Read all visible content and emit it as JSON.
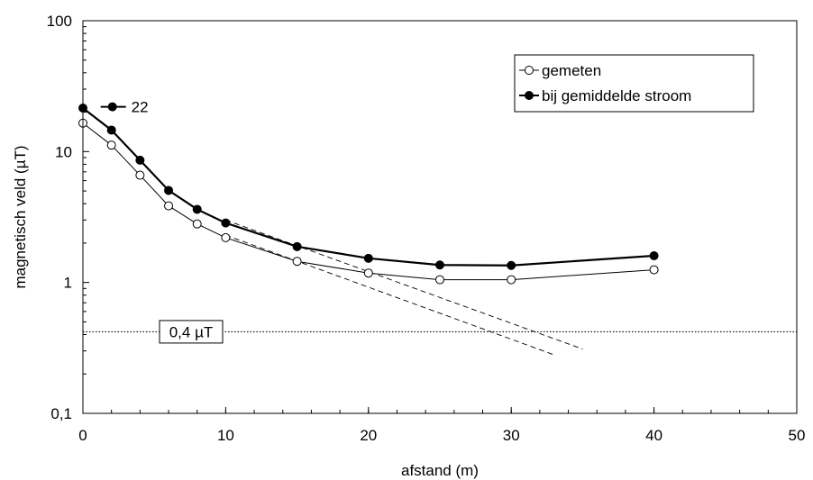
{
  "chart_data": {
    "type": "line",
    "title": "",
    "xlabel": "afstand (m)",
    "ylabel": "magnetisch veld (µT)",
    "xlim": [
      0,
      50
    ],
    "ylim": [
      0.1,
      100
    ],
    "yscale": "log",
    "xticks": [
      "0",
      "10",
      "20",
      "30",
      "40",
      "50"
    ],
    "yticks": [
      "0,1",
      "1",
      "10",
      "100"
    ],
    "grid": false,
    "legend_position": "top-right",
    "series": [
      {
        "name": "gemeten",
        "marker": "open-circle",
        "line": "thin",
        "x": [
          0,
          2,
          4,
          6,
          8,
          10,
          15,
          20,
          25,
          30,
          40
        ],
        "y": [
          16.5,
          11.2,
          6.6,
          3.85,
          2.8,
          2.2,
          1.45,
          1.18,
          1.05,
          1.05,
          1.25
        ]
      },
      {
        "name": "bij gemiddelde stroom",
        "marker": "filled-circle",
        "line": "thick",
        "x": [
          0,
          2,
          4,
          6,
          8,
          10,
          15,
          20,
          25,
          30,
          40
        ],
        "y": [
          21.5,
          14.6,
          8.6,
          5.05,
          3.62,
          2.85,
          1.88,
          1.53,
          1.36,
          1.35,
          1.6
        ]
      }
    ],
    "reference_lines": [
      {
        "label": "0,4 µT",
        "y": 0.42,
        "style": "dotted"
      }
    ],
    "trend_lines": [
      {
        "x": [
          10,
          33
        ],
        "y": [
          2.3,
          0.28
        ],
        "style": "dashed"
      },
      {
        "x": [
          10,
          35
        ],
        "y": [
          3.0,
          0.31
        ],
        "style": "dashed"
      }
    ],
    "annotations": [
      {
        "text": "22",
        "x": 2,
        "y": 22
      }
    ]
  }
}
